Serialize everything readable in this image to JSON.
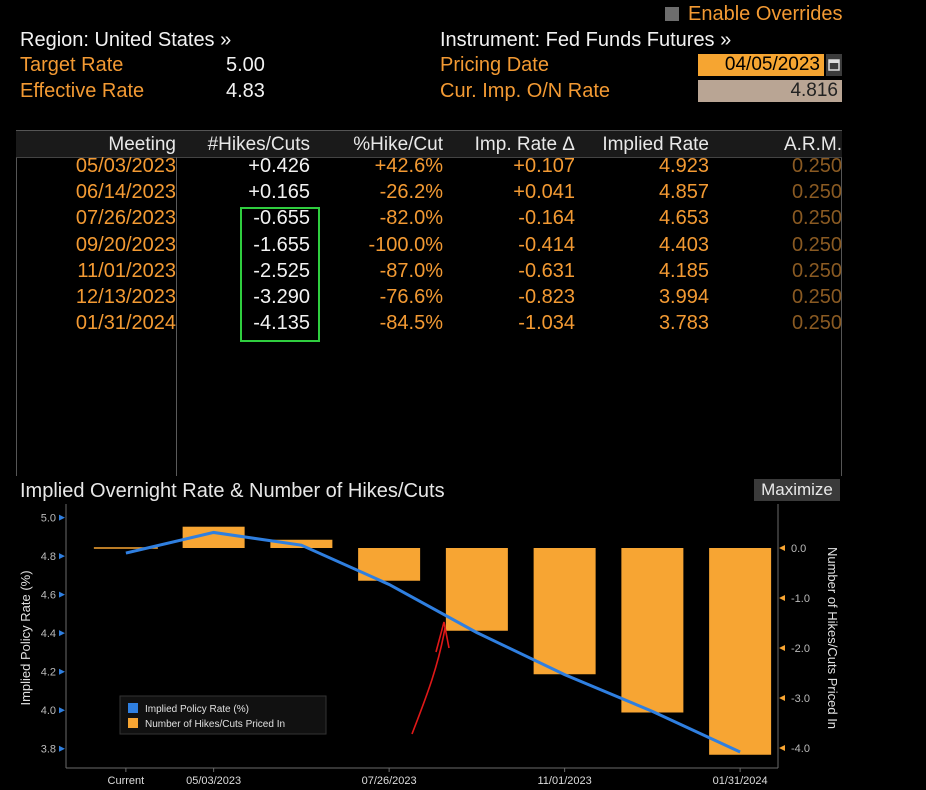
{
  "controls": {
    "enable_overrides": "Enable Overrides"
  },
  "header": {
    "region": "Region: United States »",
    "instrument": "Instrument: Fed Funds Futures »",
    "target_rate_label": "Target Rate",
    "target_rate_value": "5.00",
    "effective_rate_label": "Effective Rate",
    "effective_rate_value": "4.83",
    "pricing_date_label": "Pricing Date",
    "pricing_date_value": "04/05/2023",
    "onrate_label": "Cur. Imp. O/N Rate",
    "onrate_value": "4.816"
  },
  "table": {
    "columns": [
      "Meeting",
      "#Hikes/Cuts",
      "%Hike/Cut",
      "Imp. Rate Δ",
      "Implied Rate",
      "A.R.M."
    ],
    "rows": [
      {
        "meeting": "05/03/2023",
        "hikes": "+0.426",
        "pct": "+42.6%",
        "delta": "+0.107",
        "implied": "4.923",
        "arm": "0.250"
      },
      {
        "meeting": "06/14/2023",
        "hikes": "+0.165",
        "pct": "-26.2%",
        "delta": "+0.041",
        "implied": "4.857",
        "arm": "0.250"
      },
      {
        "meeting": "07/26/2023",
        "hikes": "-0.655",
        "pct": "-82.0%",
        "delta": "-0.164",
        "implied": "4.653",
        "arm": "0.250"
      },
      {
        "meeting": "09/20/2023",
        "hikes": "-1.655",
        "pct": "-100.0%",
        "delta": "-0.414",
        "implied": "4.403",
        "arm": "0.250"
      },
      {
        "meeting": "11/01/2023",
        "hikes": "-2.525",
        "pct": "-87.0%",
        "delta": "-0.631",
        "implied": "4.185",
        "arm": "0.250"
      },
      {
        "meeting": "12/13/2023",
        "hikes": "-3.290",
        "pct": "-76.6%",
        "delta": "-0.823",
        "implied": "3.994",
        "arm": "0.250"
      },
      {
        "meeting": "01/31/2024",
        "hikes": "-4.135",
        "pct": "-84.5%",
        "delta": "-1.034",
        "implied": "3.783",
        "arm": "0.250"
      }
    ]
  },
  "chart": {
    "title": "Implied Overnight Rate & Number of Hikes/Cuts",
    "maximize_label": "Maximize"
  },
  "chart_data": {
    "type": "bar",
    "categories": [
      "Current",
      "05/03/2023",
      "06/14/2023",
      "07/26/2023",
      "09/20/2023",
      "11/01/2023",
      "12/13/2023",
      "01/31/2024"
    ],
    "x_tick_labels": [
      "Current",
      "05/03/2023",
      "07/26/2023",
      "11/01/2023",
      "01/31/2024"
    ],
    "series": [
      {
        "name": "Implied Policy Rate (%)",
        "type": "line",
        "axis": "left",
        "color": "#2f7fe0",
        "values": [
          4.816,
          4.923,
          4.857,
          4.653,
          4.403,
          4.185,
          3.994,
          3.783
        ]
      },
      {
        "name": "Number of Hikes/Cuts Priced In",
        "type": "bar",
        "axis": "right",
        "color": "#f7a533",
        "values": [
          0,
          0.426,
          0.165,
          -0.655,
          -1.655,
          -2.525,
          -3.29,
          -4.135
        ]
      }
    ],
    "ylabel": "Implied Policy Rate (%)",
    "y2label": "Number of Hikes/Cuts Priced In",
    "ylim": [
      3.7,
      5.05
    ],
    "y2lim": [
      -4.4,
      0.8
    ],
    "yticks": [
      3.8,
      4.0,
      4.2,
      4.4,
      4.6,
      4.8,
      5.0
    ],
    "y2ticks": [
      -4.0,
      -3.0,
      -2.0,
      -1.0,
      0.0
    ],
    "legend": "bottom-left"
  },
  "colors": {
    "accent": "#f39a33",
    "highlight": "#2fce3f",
    "line": "#2f7fe0",
    "bar": "#f7a533",
    "annotation": "#e01818"
  }
}
